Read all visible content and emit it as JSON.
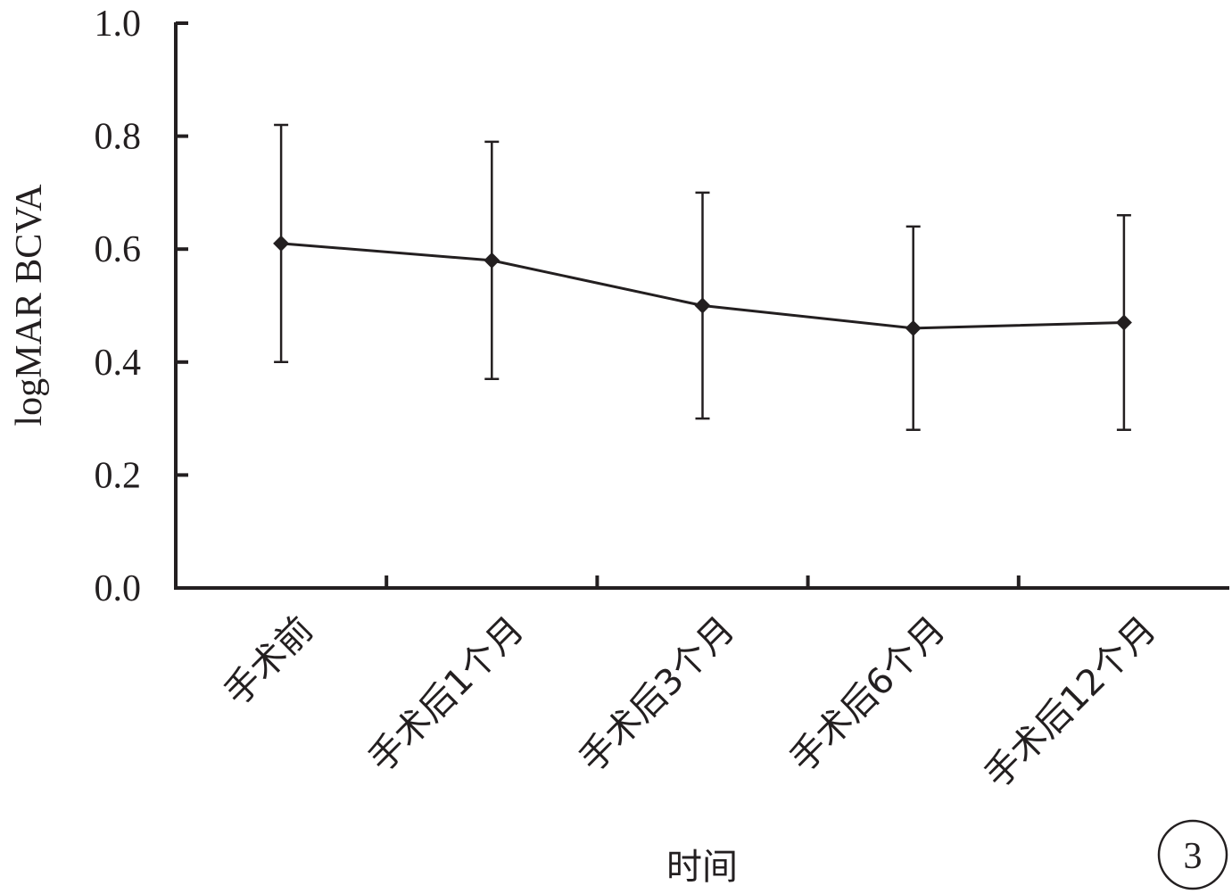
{
  "chart_data": {
    "type": "line",
    "categories": [
      "手术前",
      "手术后1个月",
      "手术后3个月",
      "手术后6个月",
      "手术后12个月"
    ],
    "series": [
      {
        "values": [
          0.61,
          0.58,
          0.5,
          0.46,
          0.47
        ],
        "error_upper": [
          0.82,
          0.79,
          0.7,
          0.64,
          0.66
        ],
        "error_lower": [
          0.4,
          0.37,
          0.3,
          0.28,
          0.28
        ]
      }
    ],
    "xlabel": "时间",
    "ylabel": "logMAR BCVA",
    "ylim": [
      0.0,
      1.0
    ],
    "yticks": [
      "0.0",
      "0.2",
      "0.4",
      "0.6",
      "0.8",
      "1.0"
    ],
    "grid": false,
    "marker": "diamond",
    "line_color": "#231f20"
  },
  "panel_label": "3"
}
